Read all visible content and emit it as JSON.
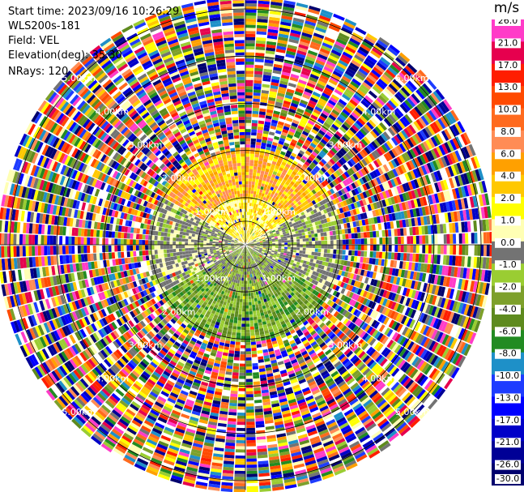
{
  "header": {
    "start_time": "Start time: 2023/09/16 10:26:29",
    "instrument": "WLS200s-181",
    "field": "Field: VEL",
    "elevation": "Elevation(deg): 35.30",
    "nrays": "NRays: 120"
  },
  "colorbar": {
    "unit": "m/s",
    "ticks": [
      "26.0",
      "21.0",
      "17.0",
      "13.0",
      "10.0",
      "8.0",
      "6.0",
      "4.0",
      "2.0",
      "1.0",
      "0.0",
      "-1.0",
      "-2.0",
      "-4.0",
      "-6.0",
      "-8.0",
      "-10.0",
      "-13.0",
      "-17.0",
      "-21.0",
      "-26.0",
      "-30.0"
    ],
    "colors": [
      "#ff3cc8",
      "#e6004e",
      "#ff1e00",
      "#ff4a00",
      "#ff6a1e",
      "#ff8c55",
      "#ffa000",
      "#ffc800",
      "#ffff00",
      "#ffffb4",
      "#737373",
      "#9acd32",
      "#7da02b",
      "#5e8a1e",
      "#228b22",
      "#1e90c8",
      "#1e3cff",
      "#0000ff",
      "#0000c8",
      "#000096",
      "#00006e"
    ]
  },
  "chart_data": {
    "type": "heatmap",
    "projection": "polar PPI",
    "field": "VEL",
    "units": "m/s",
    "range_rings_km": [
      0.5,
      1.0,
      2.0,
      3.0,
      4.0,
      5.0
    ],
    "ring_labels": [
      "1.00km",
      "2.00km",
      "3.00km",
      "4.00km",
      "5.00km"
    ],
    "nrays": 120,
    "spoke_angles_deg": [
      0,
      30,
      60,
      90,
      120,
      150,
      180,
      210,
      240,
      270,
      300,
      330
    ],
    "value_range": [
      -30.0,
      26.0
    ],
    "field_summary": {
      "north_sector": "positive 1 to 8 m/s (yellow/orange)",
      "south_sector": "negative -1 to -6 m/s (green)",
      "east_west": "near 0 m/s (grey)",
      "beyond_2km": "noise, all colors"
    }
  }
}
